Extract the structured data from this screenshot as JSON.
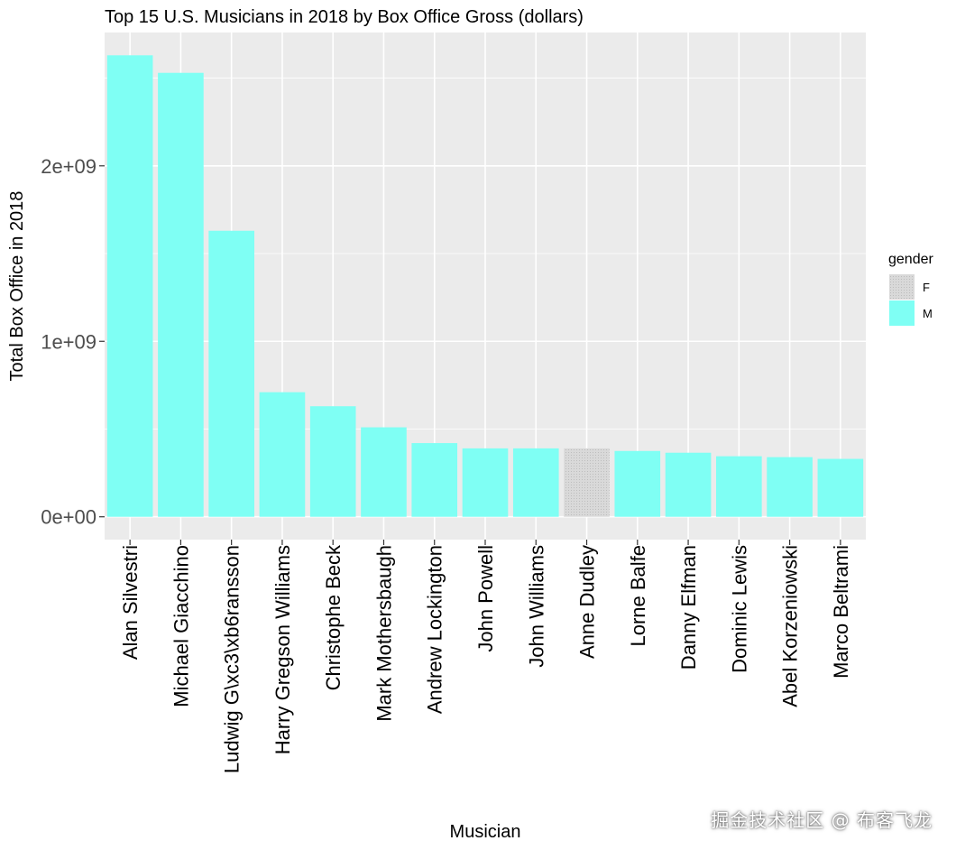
{
  "chart_data": {
    "type": "bar",
    "title": "Top 15 U.S. Musicians in 2018 by Box Office Gross (dollars)",
    "xlabel": "Musician",
    "ylabel": "Total Box Office in 2018",
    "categories": [
      "Alan Silvestri",
      "Michael Giacchino",
      "Ludwig G\\xc3\\xb6ransson",
      "Harry Gregson Williams",
      "Christophe Beck",
      "Mark Mothersbaugh",
      "Andrew Lockington",
      "John Powell",
      "John Williams",
      "Anne Dudley",
      "Lorne Balfe",
      "Danny Elfman",
      "Dominic Lewis",
      "Abel Korzeniowski",
      "Marco Beltrami"
    ],
    "values": [
      2630000000,
      2530000000,
      1630000000,
      710000000,
      630000000,
      510000000,
      420000000,
      390000000,
      390000000,
      390000000,
      375000000,
      365000000,
      345000000,
      340000000,
      330000000
    ],
    "gender": [
      "M",
      "M",
      "M",
      "M",
      "M",
      "M",
      "M",
      "M",
      "M",
      "F",
      "M",
      "M",
      "M",
      "M",
      "M"
    ],
    "ylim": [
      -130000000,
      2760000000
    ],
    "yticks": [
      0,
      1000000000,
      2000000000
    ],
    "ytick_labels": [
      "0e+00",
      "1e+09",
      "2e+09"
    ],
    "grid": true,
    "legend": {
      "title": "gender",
      "position": "right",
      "entries": [
        {
          "label": "F",
          "color": "#d9d9d9"
        },
        {
          "label": "M",
          "color": "#7ffff4"
        }
      ]
    },
    "colors": {
      "M": "#7ffff4",
      "F": "#d9d9d9",
      "panel": "#ebebeb",
      "grid": "#ffffff"
    }
  },
  "watermark": "掘金技术社区 @ 布客飞龙"
}
